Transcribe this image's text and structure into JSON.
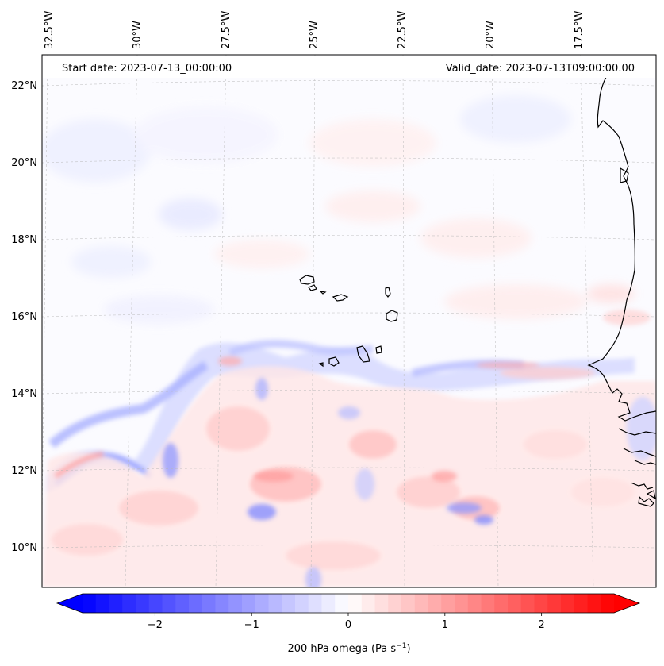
{
  "map": {
    "start_date_text": "Start date: 2023-07-13_00:00:00",
    "valid_date_text": "Valid_date: 2023-07-13T09:00:00.00",
    "longitude_labels": [
      "32.5°W",
      "30°W",
      "27.5°W",
      "25°W",
      "22.5°W",
      "20°W",
      "17.5°W"
    ],
    "latitude_labels": [
      "22°N",
      "20°N",
      "18°N",
      "16°N",
      "14°N",
      "12°N",
      "10°N"
    ],
    "extent": {
      "lon_min": -33.0,
      "lon_max": -16.5,
      "lat_min": 8.8,
      "lat_max": 22.8
    },
    "gridlines": true,
    "field_description": "omega field",
    "colors": {
      "negative": "#0000ff",
      "zero": "#ffffff",
      "positive": "#ff0000",
      "coastline": "#000000",
      "grid": "#b0b0b0"
    }
  },
  "colorbar": {
    "label_main": "200 hPa omega (Pa s",
    "label_sup": "−1",
    "label_end": ")",
    "ticks": [
      "−2",
      "−1",
      "0",
      "1",
      "2"
    ],
    "tick_values": [
      -2,
      -1,
      0,
      1,
      2
    ],
    "range": [
      -2.75,
      2.75
    ],
    "levels": 40,
    "extend": "both",
    "orientation": "horizontal",
    "colormap": "bwr"
  }
}
